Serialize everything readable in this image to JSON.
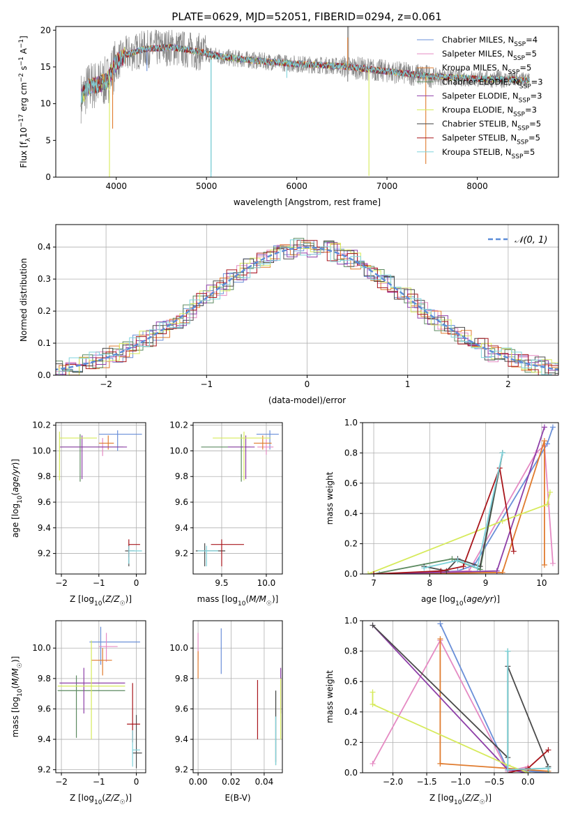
{
  "title": "PLATE=0629, MJD=52051, FIBERID=0294, z=0.061",
  "legend_spectrum": [
    {
      "label": "Chabrier MILES, N",
      "sub": "SSP",
      "tail": "=4"
    },
    {
      "label": "Salpeter MILES, N",
      "sub": "SSP",
      "tail": "=5"
    },
    {
      "label": "Kroupa MILES, N",
      "sub": "SSP",
      "tail": "=5"
    },
    {
      "label": "Chabrier ELODIE, N",
      "sub": "SSP",
      "tail": "=3"
    },
    {
      "label": "Salpeter ELODIE, N",
      "sub": "SSP",
      "tail": "=3"
    },
    {
      "label": "Kroupa ELODIE, N",
      "sub": "SSP",
      "tail": "=3"
    },
    {
      "label": "Chabrier STELIB, N",
      "sub": "SSP",
      "tail": "=5"
    },
    {
      "label": "Salpeter STELIB, N",
      "sub": "SSP",
      "tail": "=5"
    },
    {
      "label": "Kroupa STELIB, N",
      "sub": "SSP",
      "tail": "=5"
    }
  ],
  "colors": {
    "series": [
      "#6a8fd8",
      "#e58ac3",
      "#e07b2e",
      "#5c8a60",
      "#8e3fa8",
      "#d6ea5a",
      "#4a4a4a",
      "#a8161c",
      "#7fd3dc"
    ],
    "data_spectrum": "#888888",
    "gaussian": "#5b8cd8",
    "grid": "#b0b0b0"
  },
  "chart_data": [
    {
      "type": "line",
      "panel": "spectrum",
      "xlabel": "wavelength [Angstrom, rest frame]",
      "ylabel_main": "Flux [f",
      "ylabel_sub": "λ",
      "ylabel_mid": "10",
      "ylabel_sup1": "−17",
      "ylabel_tail": " erg cm",
      "ylabel_sup2": "−2",
      "ylabel_s": " s",
      "ylabel_sup3": "−1",
      "ylabel_end": " A",
      "ylabel_sup4": "−1",
      "ylabel_close": "]",
      "xlim": [
        3330,
        8900
      ],
      "ylim": [
        0,
        20.5
      ],
      "xticks": [
        4000,
        5000,
        6000,
        7000,
        8000
      ],
      "yticks": [
        0,
        5,
        10,
        15,
        20
      ],
      "x_range": [
        3610,
        8580
      ],
      "model_shape": [
        [
          3610,
          10.8
        ],
        [
          3700,
          12.4
        ],
        [
          3800,
          12.6
        ],
        [
          3900,
          13.1
        ],
        [
          4000,
          15.6
        ],
        [
          4100,
          16.6
        ],
        [
          4300,
          17.4
        ],
        [
          4600,
          17.7
        ],
        [
          4900,
          17.1
        ],
        [
          5200,
          16.3
        ],
        [
          5600,
          15.8
        ],
        [
          6000,
          15.4
        ],
        [
          6500,
          15.1
        ],
        [
          7000,
          14.4
        ],
        [
          7500,
          13.7
        ],
        [
          8000,
          13.4
        ],
        [
          8580,
          13.2
        ]
      ],
      "spikes": [
        [
          3925,
          -14
        ],
        [
          3960,
          -8
        ],
        [
          4340,
          -3
        ],
        [
          5050,
          -16
        ],
        [
          5890,
          -2
        ],
        [
          6565,
          4
        ],
        [
          6800,
          -14.5
        ],
        [
          7430,
          -12
        ]
      ]
    },
    {
      "type": "histogram",
      "panel": "residuals",
      "xlabel": "(data-model)/error",
      "ylabel": "Normed distribution",
      "xlim": [
        -2.5,
        2.5
      ],
      "ylim": [
        0,
        0.47
      ],
      "xticks": [
        -2,
        -1,
        0,
        1,
        2
      ],
      "yticks": [
        0.0,
        0.1,
        0.2,
        0.3,
        0.4
      ],
      "bin_width": 0.1,
      "legend": "𝒩(0, 1)"
    },
    {
      "type": "errorbar",
      "panel": "age-vs-Z",
      "xlabel": "Z [log10(Z/Z☉)]",
      "ylabel": "age  [log10(age/yr)]",
      "xlim": [
        -2.15,
        0.25
      ],
      "ylim": [
        9.04,
        10.22
      ],
      "xticks": [
        -2,
        -1,
        0
      ],
      "yticks": [
        9.2,
        9.4,
        9.6,
        9.8,
        10.0,
        10.2
      ],
      "points": [
        {
          "x": -0.5,
          "xerr": [
            0.5,
            0.65
          ],
          "y": 10.13,
          "yerr": [
            0.13,
            0.03
          ]
        },
        {
          "x": -0.9,
          "xerr": [
            0.12,
            0.12
          ],
          "y": 10.03,
          "yerr": [
            0.07,
            0.07
          ]
        },
        {
          "x": -0.75,
          "xerr": [
            0.25,
            0.15
          ],
          "y": 10.06,
          "yerr": [
            0.05,
            0.06
          ]
        },
        {
          "x": -1.5,
          "xerr": [
            0.5,
            1.15
          ],
          "y": 10.03,
          "yerr": [
            0.27,
            0.1
          ]
        },
        {
          "x": -1.45,
          "xerr": [
            0.6,
            1.2
          ],
          "y": 10.03,
          "yerr": [
            0.25,
            0.09
          ]
        },
        {
          "x": -2.05,
          "xerr": [
            0.0,
            1.0
          ],
          "y": 10.1,
          "yerr": [
            0.33,
            0.05
          ]
        },
        {
          "x": -0.2,
          "xerr": [
            0.1,
            0.15
          ],
          "y": 9.22,
          "yerr": [
            0.12,
            0.05
          ]
        },
        {
          "x": -0.2,
          "xerr": [
            0.0,
            0.3
          ],
          "y": 9.27,
          "yerr": [
            0.1,
            0.04
          ]
        },
        {
          "x": -0.2,
          "xerr": [
            0.0,
            0.35
          ],
          "y": 9.22,
          "yerr": [
            0.1,
            0.04
          ]
        }
      ]
    },
    {
      "type": "errorbar",
      "panel": "age-vs-mass",
      "xlabel": "mass [log10(M/M☉)]",
      "ylabel": "",
      "xlim": [
        9.18,
        10.18
      ],
      "ylim": [
        9.04,
        10.22
      ],
      "xticks": [
        9.5,
        10.0
      ],
      "yticks": [
        9.2,
        9.4,
        9.6,
        9.8,
        10.0,
        10.2
      ],
      "points": [
        {
          "x": 10.04,
          "xerr": [
            0.15,
            0.1
          ],
          "y": 10.13,
          "yerr": [
            0.12,
            0.03
          ]
        },
        {
          "x": 10.0,
          "xerr": [
            0.1,
            0.08
          ],
          "y": 10.03,
          "yerr": [
            0.06,
            0.06
          ]
        },
        {
          "x": 9.96,
          "xerr": [
            0.1,
            0.1
          ],
          "y": 10.06,
          "yerr": [
            0.05,
            0.06
          ]
        },
        {
          "x": 9.72,
          "xerr": [
            0.45,
            0.1
          ],
          "y": 10.03,
          "yerr": [
            0.27,
            0.1
          ]
        },
        {
          "x": 9.77,
          "xerr": [
            0.2,
            0.1
          ],
          "y": 10.03,
          "yerr": [
            0.25,
            0.09
          ]
        },
        {
          "x": 9.75,
          "xerr": [
            0.35,
            0.3
          ],
          "y": 10.1,
          "yerr": [
            0.33,
            0.05
          ]
        },
        {
          "x": 9.31,
          "xerr": [
            0.1,
            0.23
          ],
          "y": 9.22,
          "yerr": [
            0.12,
            0.06
          ]
        },
        {
          "x": 9.5,
          "xerr": [
            0.12,
            0.25
          ],
          "y": 9.27,
          "yerr": [
            0.17,
            0.04
          ]
        },
        {
          "x": 9.33,
          "xerr": [
            0.1,
            0.13
          ],
          "y": 9.22,
          "yerr": [
            0.12,
            0.04
          ]
        }
      ]
    },
    {
      "type": "line",
      "panel": "mass-weight-vs-age",
      "xlabel": "age  [log10(age/yr)]",
      "ylabel": "mass weight",
      "xlim": [
        6.8,
        10.3
      ],
      "ylim": [
        0,
        1
      ],
      "xticks": [
        7,
        8,
        9,
        10
      ],
      "yticks": [
        0.0,
        0.2,
        0.4,
        0.6,
        0.8,
        1.0
      ],
      "series": [
        {
          "x": [
            7.1,
            8.5,
            8.8,
            10.1,
            10.2
          ],
          "y": [
            0.0,
            0.02,
            0.06,
            0.86,
            0.97
          ]
        },
        {
          "x": [
            7.0,
            8.7,
            9.9,
            10.05,
            10.2
          ],
          "y": [
            0.0,
            0.02,
            0.8,
            0.85,
            0.07
          ]
        },
        {
          "x": [
            7.0,
            9.3,
            10.05,
            10.05
          ],
          "y": [
            0.0,
            0.01,
            0.88,
            0.06
          ]
        },
        {
          "x": [
            7.0,
            8.4,
            8.9,
            9.3
          ],
          "y": [
            0.0,
            0.1,
            0.03,
            0.8
          ]
        },
        {
          "x": [
            7.0,
            9.2,
            10.05
          ],
          "y": [
            0.0,
            0.02,
            0.97
          ]
        },
        {
          "x": [
            6.9,
            9.3,
            10.1,
            10.15
          ],
          "y": [
            0.0,
            0.35,
            0.46,
            0.54
          ]
        },
        {
          "x": [
            7.9,
            8.3,
            8.5,
            8.9,
            9.3
          ],
          "y": [
            0.05,
            0.02,
            0.1,
            0.05,
            0.8
          ]
        },
        {
          "x": [
            7.0,
            8.2,
            8.6,
            9.25,
            9.5
          ],
          "y": [
            0.0,
            0.02,
            0.05,
            0.7,
            0.15
          ]
        },
        {
          "x": [
            7.9,
            8.5,
            8.85,
            9.3
          ],
          "y": [
            0.04,
            0.09,
            0.04,
            0.8
          ]
        }
      ]
    },
    {
      "type": "errorbar",
      "panel": "mass-vs-Z",
      "xlabel": "Z [log10(Z/Z☉)]",
      "ylabel": "mass [log10(M/M☉)]",
      "xlim": [
        -2.15,
        0.25
      ],
      "ylim": [
        9.18,
        10.18
      ],
      "xticks": [
        -2,
        -1,
        0
      ],
      "yticks": [
        9.2,
        9.4,
        9.6,
        9.8,
        10.0
      ],
      "points": [
        {
          "x": -0.95,
          "xerr": [
            0.3,
            1.05
          ],
          "y": 10.04,
          "yerr": [
            0.15,
            0.1
          ]
        },
        {
          "x": -0.8,
          "xerr": [
            0.2,
            0.3
          ],
          "y": 10.01,
          "yerr": [
            0.1,
            0.09
          ]
        },
        {
          "x": -0.9,
          "xerr": [
            0.3,
            0.25
          ],
          "y": 9.92,
          "yerr": [
            0.1,
            0.08
          ]
        },
        {
          "x": -1.6,
          "xerr": [
            0.5,
            1.3
          ],
          "y": 9.72,
          "yerr": [
            0.31,
            0.1
          ]
        },
        {
          "x": -1.4,
          "xerr": [
            0.65,
            1.1
          ],
          "y": 9.77,
          "yerr": [
            0.2,
            0.1
          ]
        },
        {
          "x": -1.2,
          "xerr": [
            0.9,
            0.9
          ],
          "y": 9.75,
          "yerr": [
            0.35,
            0.3
          ]
        },
        {
          "x": 0.0,
          "xerr": [
            0.1,
            0.15
          ],
          "y": 9.31,
          "yerr": [
            0.1,
            0.25
          ]
        },
        {
          "x": -0.1,
          "xerr": [
            0.15,
            0.2
          ],
          "y": 9.5,
          "yerr": [
            0.12,
            0.27
          ]
        },
        {
          "x": -0.1,
          "xerr": [
            0.0,
            0.2
          ],
          "y": 9.33,
          "yerr": [
            0.11,
            0.13
          ]
        }
      ]
    },
    {
      "type": "errorbar",
      "panel": "mass-vs-ebv",
      "xlabel": "E(B-V)",
      "ylabel": "",
      "xlim": [
        -0.003,
        0.051
      ],
      "ylim": [
        9.18,
        10.18
      ],
      "xticks": [
        0.0,
        0.02,
        0.04
      ],
      "yticks": [
        9.2,
        9.4,
        9.6,
        9.8,
        10.0
      ],
      "points": [
        {
          "x": 0.014,
          "xerr": [
            0,
            0
          ],
          "y": 9.98,
          "yerr": [
            0.15,
            0.15
          ]
        },
        {
          "x": 0.0,
          "xerr": [
            0,
            0
          ],
          "y": 10.0,
          "yerr": [
            0.08,
            0.1
          ]
        },
        {
          "x": 0.0,
          "xerr": [
            0,
            0
          ],
          "y": 9.9,
          "yerr": [
            0.1,
            0.08
          ]
        },
        {
          "x": 0.047,
          "xerr": [
            0,
            0
          ],
          "y": 9.5,
          "yerr": [
            0.27,
            0.22
          ]
        },
        {
          "x": 0.05,
          "xerr": [
            0,
            0
          ],
          "y": 9.77,
          "yerr": [
            0.2,
            0.1
          ]
        },
        {
          "x": 0.05,
          "xerr": [
            0,
            0
          ],
          "y": 9.6,
          "yerr": [
            0.2,
            0.2
          ]
        },
        {
          "x": 0.047,
          "xerr": [
            0,
            0
          ],
          "y": 9.45,
          "yerr": [
            0.2,
            0.27
          ]
        },
        {
          "x": 0.036,
          "xerr": [
            0,
            0
          ],
          "y": 9.6,
          "yerr": [
            0.2,
            0.19
          ]
        },
        {
          "x": 0.047,
          "xerr": [
            0,
            0
          ],
          "y": 9.35,
          "yerr": [
            0.12,
            0.2
          ]
        }
      ]
    },
    {
      "type": "line",
      "panel": "mass-weight-vs-Z",
      "xlabel": "Z [log10(Z/Z☉)]",
      "ylabel": "mass weight",
      "xlim": [
        -2.45,
        0.45
      ],
      "ylim": [
        0,
        1
      ],
      "xticks": [
        -2.0,
        -1.5,
        -1.0,
        -0.5,
        0.0
      ],
      "yticks": [
        0.0,
        0.2,
        0.4,
        0.6,
        0.8,
        1.0
      ],
      "series": [
        {
          "x": [
            -1.3,
            -0.3,
            0.3,
            0.0
          ],
          "y": [
            0.98,
            0.02,
            0.0,
            0.02
          ]
        },
        {
          "x": [
            -2.3,
            -1.3,
            -0.3,
            0.0
          ],
          "y": [
            0.06,
            0.87,
            0.01,
            0.04
          ]
        },
        {
          "x": [
            -1.3,
            -1.3,
            -1.3,
            0.3
          ],
          "y": [
            0.88,
            0.06,
            0.06,
            0.01
          ]
        },
        {
          "x": [
            -0.3,
            -0.3,
            0.3,
            0.3
          ],
          "y": [
            0.8,
            0.02,
            0.03,
            0.0
          ]
        },
        {
          "x": [
            -2.3,
            -0.3,
            0.0
          ],
          "y": [
            0.97,
            0.02,
            0.0
          ]
        },
        {
          "x": [
            -2.3,
            -2.3,
            -0.3,
            0.0
          ],
          "y": [
            0.53,
            0.45,
            0.05,
            0.0
          ]
        },
        {
          "x": [
            -2.3,
            -0.3,
            -0.3,
            0.3
          ],
          "y": [
            0.97,
            0.1,
            0.7,
            0.04
          ]
        },
        {
          "x": [
            -0.3,
            0.0,
            0.3
          ],
          "y": [
            0.0,
            0.03,
            0.15
          ]
        },
        {
          "x": [
            -0.3,
            -0.3,
            0.3
          ],
          "y": [
            0.8,
            0.02,
            0.03
          ]
        }
      ]
    }
  ]
}
